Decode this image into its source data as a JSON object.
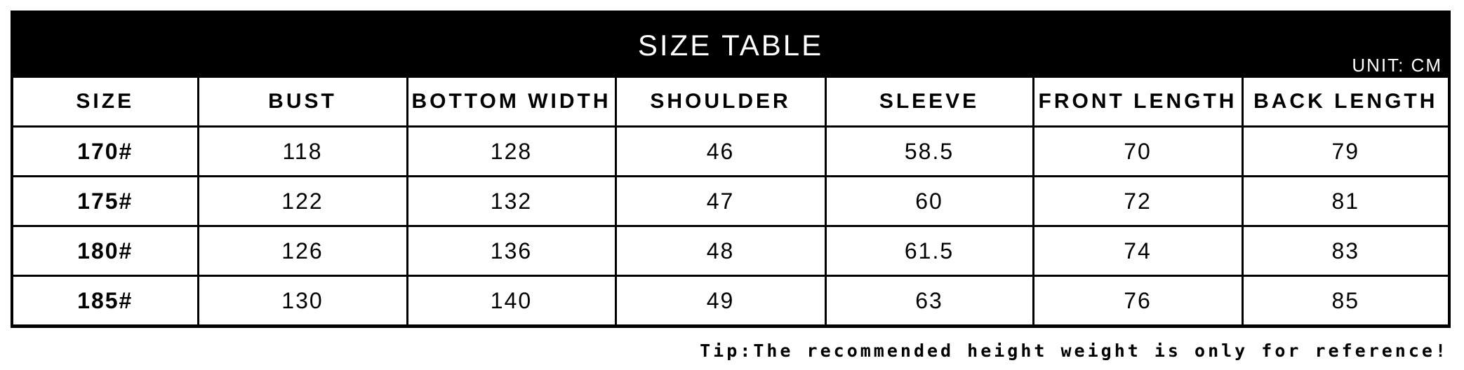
{
  "title": "SIZE TABLE",
  "unit": "UNIT: CM",
  "columns": [
    "SIZE",
    "BUST",
    "BOTTOM WIDTH",
    "SHOULDER",
    "SLEEVE",
    "FRONT LENGTH",
    "BACK LENGTH"
  ],
  "rows": [
    [
      "170#",
      "118",
      "128",
      "46",
      "58.5",
      "70",
      "79"
    ],
    [
      "175#",
      "122",
      "132",
      "47",
      "60",
      "72",
      "81"
    ],
    [
      "180#",
      "126",
      "136",
      "48",
      "61.5",
      "74",
      "83"
    ],
    [
      "185#",
      "130",
      "140",
      "49",
      "63",
      "76",
      "85"
    ]
  ],
  "tip": "Tip:The recommended height weight is only for reference!"
}
